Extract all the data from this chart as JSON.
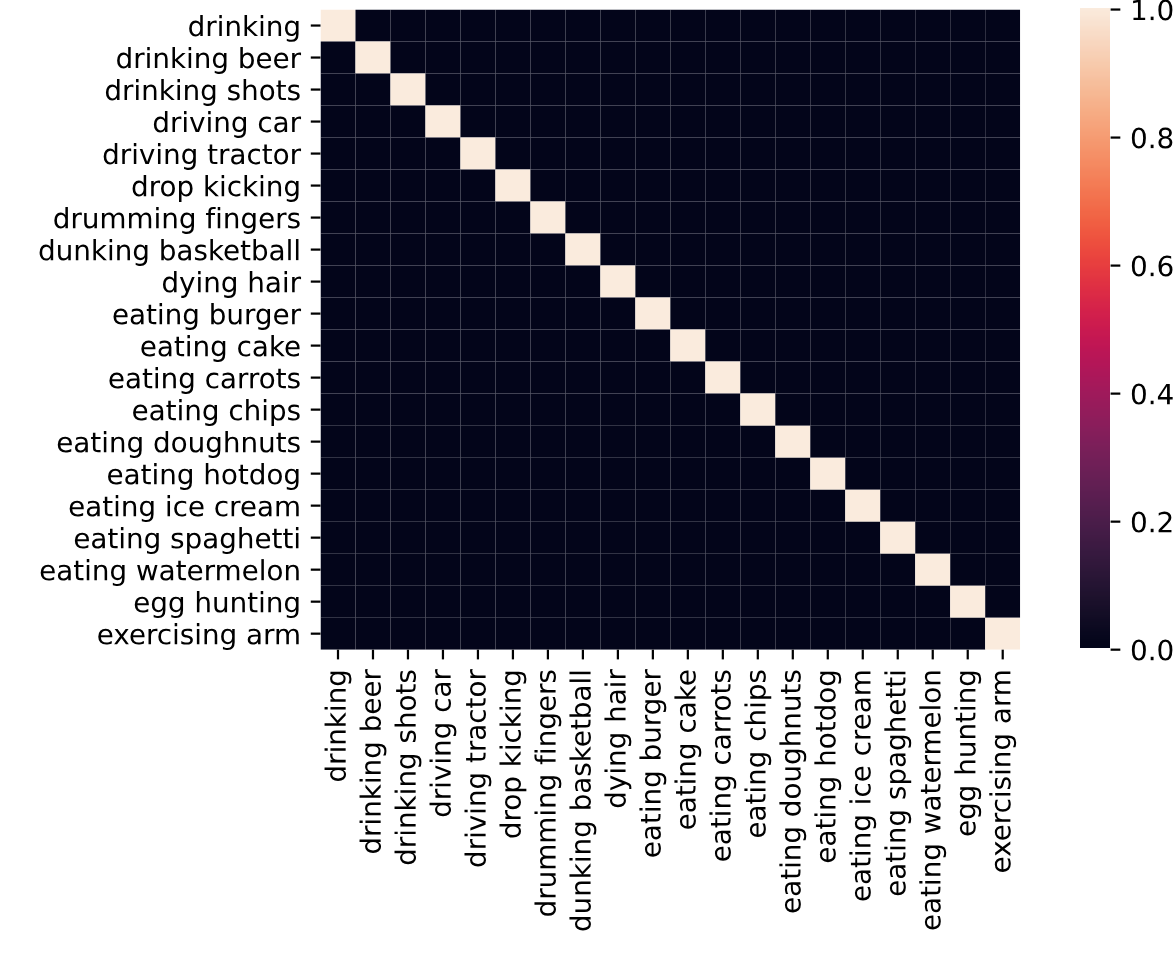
{
  "chart_data": {
    "type": "heatmap",
    "categories": [
      "drinking",
      "drinking beer",
      "drinking shots",
      "driving car",
      "driving tractor",
      "drop kicking",
      "drumming fingers",
      "dunking basketball",
      "dying hair",
      "eating burger",
      "eating cake",
      "eating carrots",
      "eating chips",
      "eating doughnuts",
      "eating hotdog",
      "eating ice cream",
      "eating spaghetti",
      "eating watermelon",
      "egg hunting",
      "exercising arm"
    ],
    "y_categories": [
      "drinking",
      "drinking beer",
      "drinking shots",
      "driving car",
      "driving tractor",
      "drop kicking",
      "drumming fingers",
      "dunking basketball",
      "dying hair",
      "eating burger",
      "eating cake",
      "eating carrots",
      "eating chips",
      "eating doughnuts",
      "eating hotdog",
      "eating ice cream",
      "eating spaghetti",
      "eating watermelon",
      "egg hunting",
      "exercising arm"
    ],
    "cells": [
      [
        1,
        0,
        0,
        0,
        0,
        0,
        0,
        0,
        0,
        0,
        0,
        0,
        0,
        0,
        0,
        0,
        0,
        0,
        0,
        0
      ],
      [
        0,
        1,
        0,
        0,
        0,
        0,
        0,
        0,
        0,
        0,
        0,
        0,
        0,
        0,
        0,
        0,
        0,
        0,
        0,
        0
      ],
      [
        0,
        0,
        1,
        0,
        0,
        0,
        0,
        0,
        0,
        0,
        0,
        0,
        0,
        0,
        0,
        0,
        0,
        0,
        0,
        0
      ],
      [
        0,
        0,
        0,
        1,
        0,
        0,
        0,
        0,
        0,
        0,
        0,
        0,
        0,
        0,
        0,
        0,
        0,
        0,
        0,
        0
      ],
      [
        0,
        0,
        0,
        0,
        1,
        0,
        0,
        0,
        0,
        0,
        0,
        0,
        0,
        0,
        0,
        0,
        0,
        0,
        0,
        0
      ],
      [
        0,
        0,
        0,
        0,
        0,
        1,
        0,
        0,
        0,
        0,
        0,
        0,
        0,
        0,
        0,
        0,
        0,
        0,
        0,
        0
      ],
      [
        0,
        0,
        0,
        0,
        0,
        0,
        1,
        0,
        0,
        0,
        0,
        0,
        0,
        0,
        0,
        0,
        0,
        0,
        0,
        0
      ],
      [
        0,
        0,
        0,
        0,
        0,
        0,
        0,
        1,
        0,
        0,
        0,
        0,
        0,
        0,
        0,
        0,
        0,
        0,
        0,
        0
      ],
      [
        0,
        0,
        0,
        0,
        0,
        0,
        0,
        0,
        1,
        0,
        0,
        0,
        0,
        0,
        0,
        0,
        0,
        0,
        0,
        0
      ],
      [
        0,
        0,
        0,
        0,
        0,
        0,
        0,
        0,
        0,
        1,
        0,
        0,
        0,
        0,
        0,
        0,
        0,
        0,
        0,
        0
      ],
      [
        0,
        0,
        0,
        0,
        0,
        0,
        0,
        0,
        0,
        0,
        1,
        0,
        0,
        0,
        0,
        0,
        0,
        0,
        0,
        0
      ],
      [
        0,
        0,
        0,
        0,
        0,
        0,
        0,
        0,
        0,
        0,
        0,
        1,
        0,
        0,
        0,
        0,
        0,
        0,
        0,
        0
      ],
      [
        0,
        0,
        0,
        0,
        0,
        0,
        0,
        0,
        0,
        0,
        0,
        0,
        1,
        0,
        0,
        0,
        0,
        0,
        0,
        0
      ],
      [
        0,
        0,
        0,
        0,
        0,
        0,
        0,
        0,
        0,
        0,
        0,
        0,
        0,
        1,
        0,
        0,
        0,
        0,
        0,
        0
      ],
      [
        0,
        0,
        0,
        0,
        0,
        0,
        0,
        0,
        0,
        0,
        0,
        0,
        0,
        0,
        1,
        0,
        0,
        0,
        0,
        0
      ],
      [
        0,
        0,
        0,
        0,
        0,
        0,
        0,
        0,
        0,
        0,
        0,
        0,
        0,
        0,
        0,
        1,
        0,
        0,
        0,
        0
      ],
      [
        0,
        0,
        0,
        0,
        0,
        0,
        0,
        0,
        0,
        0,
        0,
        0,
        0,
        0,
        0,
        0,
        1,
        0,
        0,
        0
      ],
      [
        0,
        0,
        0,
        0,
        0,
        0,
        0,
        0,
        0,
        0,
        0,
        0,
        0,
        0,
        0,
        0,
        0,
        1,
        0,
        0
      ],
      [
        0,
        0,
        0,
        0,
        0,
        0,
        0,
        0,
        0,
        0,
        0,
        0,
        0,
        0,
        0,
        0,
        0,
        0,
        1,
        0
      ],
      [
        0,
        0,
        0,
        0,
        0,
        0,
        0,
        0,
        0,
        0,
        0,
        0,
        0,
        0,
        0,
        0,
        0,
        0,
        0,
        1
      ]
    ],
    "clim": [
      0,
      1
    ],
    "cticks": [
      {
        "value": 0,
        "label": "0.0"
      },
      {
        "value": 0.2,
        "label": "0.2"
      },
      {
        "value": 0.4,
        "label": "0.4"
      },
      {
        "value": 0.6,
        "label": "0.6"
      },
      {
        "value": 0.8,
        "label": "0.8"
      },
      {
        "value": 1,
        "label": "1.0"
      }
    ]
  }
}
